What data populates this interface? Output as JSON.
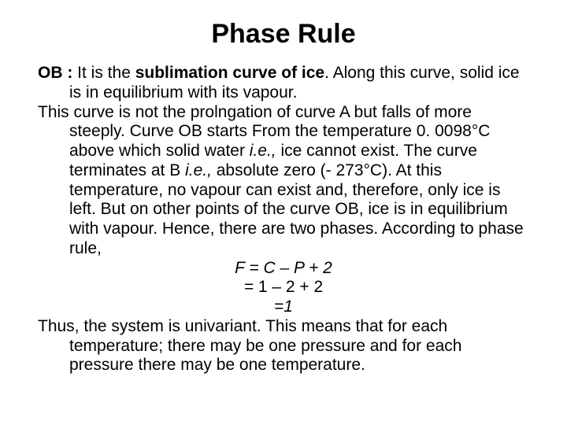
{
  "title": "Phase Rule",
  "p1a": "OB : ",
  "p1b": "It is the ",
  "p1c": "sublimation curve of ice",
  "p1d": ". Along this curve, solid ice is in equilibrium with its vapour.",
  "p2a": "This curve is not the prolngation of curve A but falls of more steeply. Curve OB starts From the temperature 0. 0098°C above which solid water ",
  "p2b": "i.e., ",
  "p2c": "ice cannot exist. The curve terminates at B ",
  "p2d": "i.e., ",
  "p2e": "absolute zero (- 273°C). At this temperature, no vapour can exist and, therefore, only ice is left. But on other points of the curve OB, ice is in equilibrium with vapour. Hence, there are two phases. According to phase rule,",
  "eq1": "F = C – P + 2",
  "eq2a": "= ",
  "eq2b": "1 – 2 + 2",
  "eq3": "=1",
  "p3": "Thus, the system is univariant. This means that for each temperature; there may be one pressure and for each pressure there may be one temperature.",
  "colors": {
    "bg": "#ffffff",
    "text": "#000000"
  },
  "fonts": {
    "title_size": 34,
    "body_size": 21,
    "family": "Arial"
  }
}
